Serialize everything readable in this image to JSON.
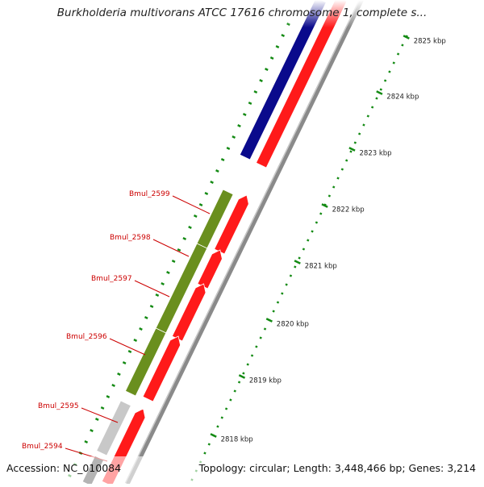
{
  "title": "Burkholderia multivorans ATCC 17616 chromosome 1, complete s...",
  "accession": "Accession: NC_010084",
  "summary": "Topology: circular; Length: 3,448,466 bp; Genes: 3,214",
  "colors": {
    "background": "#ffffff",
    "gene_label": "#cc0000",
    "tick": "#138a13",
    "cds": "#ff1a1a",
    "blue_track": "#0a0a8c",
    "green_gene": "#6a8f1e",
    "grey_gene": "#c8c8c8",
    "dark_gene": "#444444",
    "backbone": "#8a8a8a"
  },
  "scale_labels": [
    "2825 kbp",
    "2824 kbp",
    "2823 kbp",
    "2822 kbp",
    "2821 kbp",
    "2820 kbp",
    "2819 kbp",
    "2818 kbp"
  ],
  "genes": [
    "Bmul_2599",
    "Bmul_2598",
    "Bmul_2597",
    "Bmul_2596",
    "Bmul_2595",
    "Bmul_2594"
  ]
}
